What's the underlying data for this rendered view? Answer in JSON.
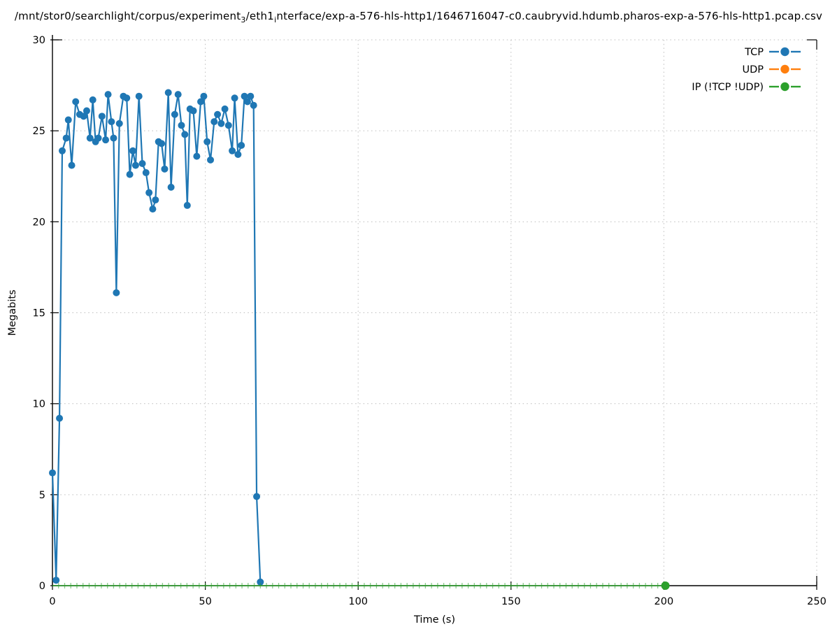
{
  "title": {
    "parts": [
      {
        "text": "/mnt/stor0/searchlight/corpus/experiment"
      },
      {
        "text": "3",
        "sub": true
      },
      {
        "text": "/eth1"
      },
      {
        "text": "i",
        "sub": true
      },
      {
        "text": "nterface/exp-a-576-hls-http1/1646716047-c0.caubryvid.hdumb.pharos-exp-a-576-hls-http1.pcap.csv"
      }
    ]
  },
  "chart_data": {
    "type": "line",
    "title": "/mnt/stor0/searchlight/corpus/experiment_3/eth1_interface/exp-a-576-hls-http1/1646716047-c0.caubryvid.hdumb.pharos-exp-a-576-hls-http1.pcap.csv",
    "xlabel": "Time (s)",
    "ylabel": "Megabits",
    "xlim": [
      0,
      250
    ],
    "ylim": [
      0,
      30
    ],
    "xticks": [
      0,
      50,
      100,
      150,
      200,
      250
    ],
    "yticks": [
      0,
      5,
      10,
      15,
      20,
      25,
      30
    ],
    "grid": true,
    "grid_style": "dotted",
    "legend_position": "top-right",
    "legend_marker": "circle",
    "series": [
      {
        "name": "TCP",
        "color": "#1f77b4",
        "marker": "circle",
        "points": [
          [
            0.0,
            6.2
          ],
          [
            1.2,
            0.3
          ],
          [
            2.3,
            9.2
          ],
          [
            3.2,
            23.9
          ],
          [
            4.5,
            24.6
          ],
          [
            5.2,
            25.6
          ],
          [
            6.3,
            23.1
          ],
          [
            7.6,
            26.6
          ],
          [
            8.9,
            25.9
          ],
          [
            10.2,
            25.8
          ],
          [
            11.2,
            26.1
          ],
          [
            12.3,
            24.6
          ],
          [
            13.2,
            26.7
          ],
          [
            14.1,
            24.4
          ],
          [
            15.0,
            24.6
          ],
          [
            16.2,
            25.8
          ],
          [
            17.4,
            24.5
          ],
          [
            18.2,
            27.0
          ],
          [
            19.3,
            25.5
          ],
          [
            20.0,
            24.6
          ],
          [
            20.9,
            16.1
          ],
          [
            21.9,
            25.4
          ],
          [
            23.2,
            26.9
          ],
          [
            24.3,
            26.8
          ],
          [
            25.3,
            22.6
          ],
          [
            26.3,
            23.9
          ],
          [
            27.2,
            23.1
          ],
          [
            28.3,
            26.9
          ],
          [
            29.4,
            23.2
          ],
          [
            30.6,
            22.7
          ],
          [
            31.6,
            21.6
          ],
          [
            32.8,
            20.7
          ],
          [
            33.7,
            21.2
          ],
          [
            34.7,
            24.4
          ],
          [
            35.7,
            24.3
          ],
          [
            36.7,
            22.9
          ],
          [
            37.9,
            27.1
          ],
          [
            38.8,
            21.9
          ],
          [
            40.0,
            25.9
          ],
          [
            41.1,
            27.0
          ],
          [
            42.2,
            25.3
          ],
          [
            43.3,
            24.8
          ],
          [
            44.1,
            20.9
          ],
          [
            45.0,
            26.2
          ],
          [
            46.1,
            26.1
          ],
          [
            47.2,
            23.6
          ],
          [
            48.5,
            26.6
          ],
          [
            49.5,
            26.9
          ],
          [
            50.6,
            24.4
          ],
          [
            51.7,
            23.4
          ],
          [
            52.9,
            25.5
          ],
          [
            54.0,
            25.9
          ],
          [
            55.2,
            25.4
          ],
          [
            56.4,
            26.2
          ],
          [
            57.6,
            25.3
          ],
          [
            58.8,
            23.9
          ],
          [
            59.6,
            26.8
          ],
          [
            60.7,
            23.7
          ],
          [
            61.8,
            24.2
          ],
          [
            62.8,
            26.9
          ],
          [
            63.8,
            26.6
          ],
          [
            64.8,
            26.9
          ],
          [
            65.8,
            26.4
          ],
          [
            66.8,
            4.9
          ],
          [
            68.0,
            0.2
          ]
        ]
      },
      {
        "name": "UDP",
        "color": "#ff7f0e",
        "marker": "circle",
        "points": []
      },
      {
        "name": "IP (!TCP  !UDP)",
        "color": "#2ca02c",
        "marker": "circle",
        "points": [
          [
            200.5,
            0
          ]
        ],
        "zero_line": {
          "t_start": 0,
          "t_end": 200,
          "tick_interval": 2,
          "y": 0
        }
      }
    ]
  }
}
